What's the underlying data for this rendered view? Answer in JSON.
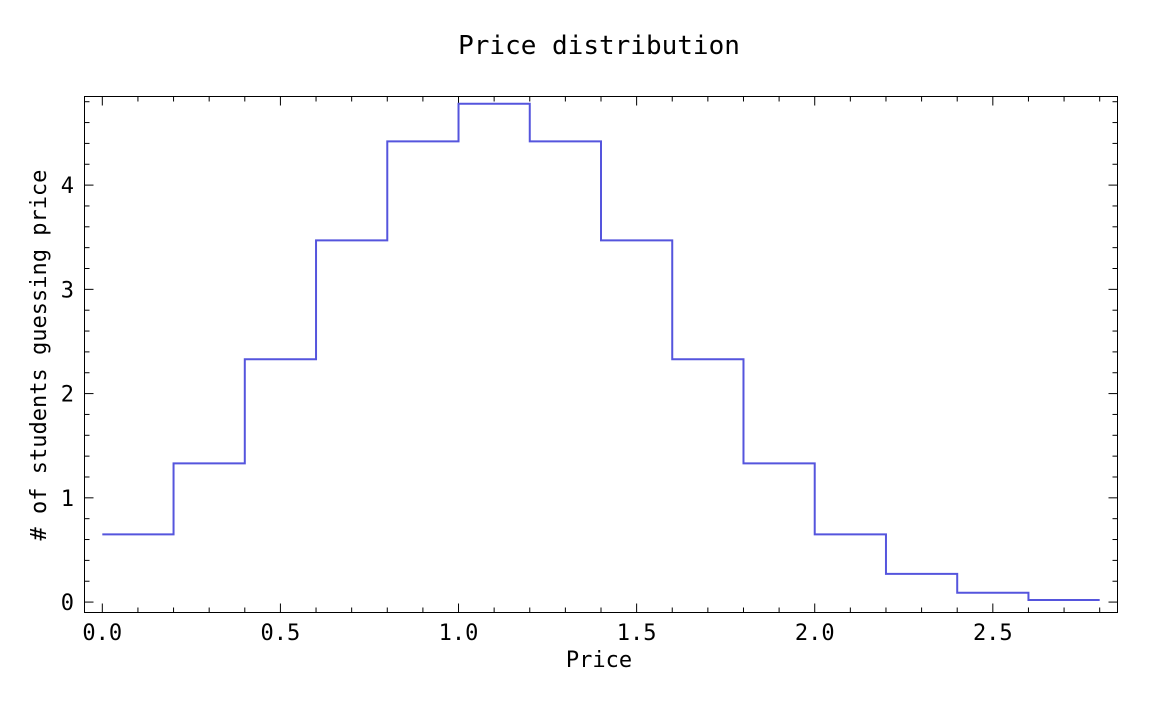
{
  "chart_data": {
    "type": "line",
    "style": "step",
    "title": "Price distribution",
    "xlabel": "Price",
    "ylabel": "# of students guessing price",
    "xlim": [
      -0.05,
      2.85
    ],
    "ylim": [
      -0.1,
      4.85
    ],
    "x_ticks": [
      0.0,
      0.5,
      1.0,
      1.5,
      2.0,
      2.5
    ],
    "x_tick_labels": [
      "0.0",
      "0.5",
      "1.0",
      "1.5",
      "2.0",
      "2.5"
    ],
    "y_ticks": [
      0,
      1,
      2,
      3,
      4
    ],
    "y_tick_labels": [
      "0",
      "1",
      "2",
      "3",
      "4"
    ],
    "grid": false,
    "series": [
      {
        "color": "#5555dd",
        "bins": [
          {
            "x0": 0.0,
            "x1": 0.2,
            "y": 0.65
          },
          {
            "x0": 0.2,
            "x1": 0.4,
            "y": 1.33
          },
          {
            "x0": 0.4,
            "x1": 0.6,
            "y": 2.33
          },
          {
            "x0": 0.6,
            "x1": 0.8,
            "y": 3.47
          },
          {
            "x0": 0.8,
            "x1": 1.0,
            "y": 4.42
          },
          {
            "x0": 1.0,
            "x1": 1.2,
            "y": 4.78
          },
          {
            "x0": 1.2,
            "x1": 1.4,
            "y": 4.42
          },
          {
            "x0": 1.4,
            "x1": 1.6,
            "y": 3.47
          },
          {
            "x0": 1.6,
            "x1": 1.8,
            "y": 2.33
          },
          {
            "x0": 1.8,
            "x1": 2.0,
            "y": 1.33
          },
          {
            "x0": 2.0,
            "x1": 2.2,
            "y": 0.65
          },
          {
            "x0": 2.2,
            "x1": 2.4,
            "y": 0.27
          },
          {
            "x0": 2.4,
            "x1": 2.6,
            "y": 0.09
          },
          {
            "x0": 2.6,
            "x1": 2.8,
            "y": 0.02
          }
        ]
      }
    ]
  }
}
